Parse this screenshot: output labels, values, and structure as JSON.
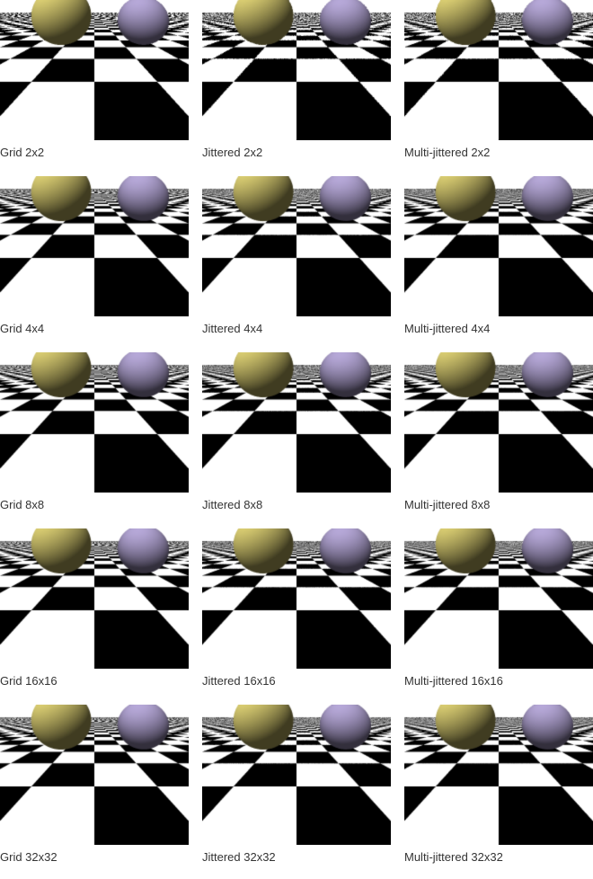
{
  "render_colors": {
    "checker_dark": "#000000",
    "checker_light": "#ffffff",
    "sphere_yellow": "#e3d677",
    "sphere_purple": "#b6a8d8"
  },
  "sampling_methods": [
    "Grid",
    "Jittered",
    "Multi-jittered"
  ],
  "sample_counts": [
    "2x2",
    "4x4",
    "8x8",
    "16x16",
    "32x32"
  ],
  "panels": [
    {
      "label": "Grid 2x2",
      "method": "grid",
      "samples": 2
    },
    {
      "label": "Jittered 2x2",
      "method": "jittered",
      "samples": 2
    },
    {
      "label": "Multi-jittered 2x2",
      "method": "multi-jittered",
      "samples": 2
    },
    {
      "label": "Grid 4x4",
      "method": "grid",
      "samples": 4
    },
    {
      "label": "Jittered 4x4",
      "method": "jittered",
      "samples": 4
    },
    {
      "label": "Multi-jittered 4x4",
      "method": "multi-jittered",
      "samples": 4
    },
    {
      "label": "Grid 8x8",
      "method": "grid",
      "samples": 8
    },
    {
      "label": "Jittered 8x8",
      "method": "jittered",
      "samples": 8
    },
    {
      "label": "Multi-jittered 8x8",
      "method": "multi-jittered",
      "samples": 8
    },
    {
      "label": "Grid 16x16",
      "method": "grid",
      "samples": 16
    },
    {
      "label": "Jittered 16x16",
      "method": "jittered",
      "samples": 16
    },
    {
      "label": "Multi-jittered 16x16",
      "method": "multi-jittered",
      "samples": 16
    },
    {
      "label": "Grid 32x32",
      "method": "grid",
      "samples": 32
    },
    {
      "label": "Jittered 32x32",
      "method": "jittered",
      "samples": 32
    },
    {
      "label": "Multi-jittered 32x32",
      "method": "multi-jittered",
      "samples": 32
    }
  ]
}
